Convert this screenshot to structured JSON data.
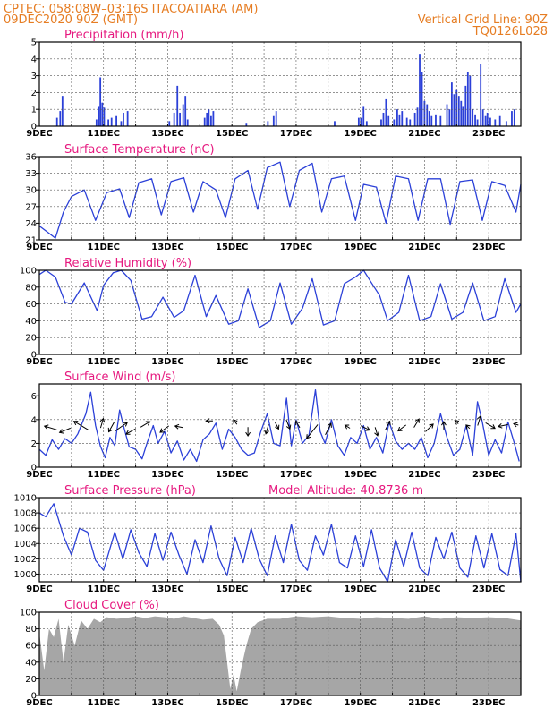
{
  "header": {
    "left_line1": "CPTEC:    058:08W–03:16S   ITACOATIARA (AM)",
    "left_line2": "09DEC2020 90Z (GMT)",
    "right_line1": "Vertical Grid Line: 90Z",
    "right_line2": "TQ0126L028"
  },
  "colors": {
    "header": "#e67d23",
    "title": "#e6197f",
    "line": "#2b40d8",
    "cloud": "#a6a6a6",
    "grid": "#555555"
  },
  "x_axis": {
    "ticks": [
      "9DEC",
      "11DEC",
      "13DEC",
      "15DEC",
      "17DEC",
      "19DEC",
      "21DEC",
      "23DEC"
    ],
    "range_days": [
      9,
      24
    ]
  },
  "chart_data": [
    {
      "type": "bar",
      "title": "Precipitation (mm/h)",
      "ylim": [
        0,
        5
      ],
      "yticks": [
        "0",
        "1",
        "2",
        "3",
        "4",
        "5"
      ],
      "bars": [
        [
          9.55,
          0.5
        ],
        [
          9.65,
          0.9
        ],
        [
          9.72,
          1.8
        ],
        [
          10.78,
          0.4
        ],
        [
          10.85,
          1.2
        ],
        [
          10.9,
          2.9
        ],
        [
          10.96,
          1.4
        ],
        [
          11.02,
          1.1
        ],
        [
          11.15,
          0.4
        ],
        [
          11.25,
          0.5
        ],
        [
          11.4,
          0.6
        ],
        [
          11.55,
          0.3
        ],
        [
          11.62,
          0.8
        ],
        [
          11.75,
          0.9
        ],
        [
          13.05,
          0.3
        ],
        [
          13.2,
          0.8
        ],
        [
          13.3,
          2.4
        ],
        [
          13.38,
          0.8
        ],
        [
          13.48,
          1.3
        ],
        [
          13.55,
          1.8
        ],
        [
          13.62,
          0.4
        ],
        [
          14.15,
          0.5
        ],
        [
          14.22,
          0.8
        ],
        [
          14.28,
          1.0
        ],
        [
          14.35,
          0.6
        ],
        [
          14.42,
          0.9
        ],
        [
          15.45,
          0.2
        ],
        [
          16.12,
          0.3
        ],
        [
          16.3,
          0.6
        ],
        [
          16.38,
          0.9
        ],
        [
          18.2,
          0.3
        ],
        [
          18.95,
          0.5
        ],
        [
          19.02,
          0.5
        ],
        [
          19.1,
          1.2
        ],
        [
          19.2,
          0.3
        ],
        [
          19.65,
          0.4
        ],
        [
          19.72,
          0.8
        ],
        [
          19.8,
          1.6
        ],
        [
          19.88,
          0.6
        ],
        [
          20.05,
          0.4
        ],
        [
          20.15,
          1.0
        ],
        [
          20.22,
          0.7
        ],
        [
          20.3,
          0.9
        ],
        [
          20.45,
          0.5
        ],
        [
          20.55,
          0.4
        ],
        [
          20.7,
          0.8
        ],
        [
          20.78,
          1.1
        ],
        [
          20.85,
          4.3
        ],
        [
          20.92,
          3.2
        ],
        [
          21.0,
          1.5
        ],
        [
          21.08,
          1.3
        ],
        [
          21.15,
          0.9
        ],
        [
          21.22,
          0.6
        ],
        [
          21.35,
          0.7
        ],
        [
          21.5,
          0.6
        ],
        [
          21.7,
          1.3
        ],
        [
          21.78,
          1.0
        ],
        [
          21.85,
          2.6
        ],
        [
          21.92,
          1.9
        ],
        [
          22.0,
          2.2
        ],
        [
          22.07,
          1.8
        ],
        [
          22.14,
          1.5
        ],
        [
          22.2,
          1.2
        ],
        [
          22.28,
          2.4
        ],
        [
          22.35,
          3.2
        ],
        [
          22.42,
          3.0
        ],
        [
          22.5,
          1.0
        ],
        [
          22.58,
          0.7
        ],
        [
          22.65,
          0.4
        ],
        [
          22.75,
          3.7
        ],
        [
          22.82,
          1.0
        ],
        [
          22.9,
          0.6
        ],
        [
          22.96,
          0.8
        ],
        [
          23.05,
          0.5
        ],
        [
          23.2,
          0.4
        ],
        [
          23.35,
          0.6
        ],
        [
          23.55,
          0.3
        ],
        [
          23.72,
          0.9
        ],
        [
          23.8,
          1.0
        ]
      ]
    },
    {
      "type": "line",
      "title": "Surface Temperature (nC)",
      "ylim": [
        21,
        36
      ],
      "yticks": [
        "21",
        "24",
        "27",
        "30",
        "33",
        "36"
      ],
      "x": [
        9.0,
        9.3,
        9.5,
        9.75,
        10.0,
        10.4,
        10.75,
        11.1,
        11.5,
        11.8,
        12.1,
        12.5,
        12.8,
        13.1,
        13.5,
        13.8,
        14.1,
        14.5,
        14.8,
        15.1,
        15.5,
        15.8,
        16.1,
        16.5,
        16.8,
        17.1,
        17.5,
        17.8,
        18.1,
        18.5,
        18.85,
        19.1,
        19.5,
        19.8,
        20.1,
        20.5,
        20.8,
        21.1,
        21.5,
        21.8,
        22.1,
        22.5,
        22.8,
        23.1,
        23.5,
        23.85,
        24.0
      ],
      "y": [
        23.5,
        22.2,
        21.3,
        26.0,
        28.8,
        30.0,
        24.5,
        29.5,
        30.2,
        25.0,
        31.3,
        32.0,
        25.5,
        31.5,
        32.2,
        26.0,
        31.5,
        30.0,
        25.0,
        32.0,
        33.5,
        26.5,
        34.0,
        35.0,
        27.0,
        33.5,
        34.8,
        26.0,
        32.0,
        32.5,
        24.5,
        31.0,
        30.5,
        24.0,
        32.5,
        32.0,
        24.5,
        32.0,
        32.0,
        23.8,
        31.5,
        31.8,
        24.5,
        31.5,
        30.8,
        26.0,
        31.0
      ]
    },
    {
      "type": "line",
      "title": "Relative Humidity (%)",
      "ylim": [
        0,
        100
      ],
      "yticks": [
        "0",
        "20",
        "40",
        "60",
        "80",
        "100"
      ],
      "x": [
        9.0,
        9.2,
        9.5,
        9.8,
        10.0,
        10.4,
        10.8,
        11.0,
        11.3,
        11.55,
        11.85,
        12.2,
        12.5,
        12.85,
        13.2,
        13.5,
        13.85,
        14.2,
        14.5,
        14.9,
        15.2,
        15.5,
        15.85,
        16.2,
        16.5,
        16.85,
        17.2,
        17.5,
        17.85,
        18.2,
        18.5,
        18.85,
        19.1,
        19.3,
        19.6,
        19.85,
        20.2,
        20.5,
        20.85,
        21.2,
        21.5,
        21.85,
        22.2,
        22.5,
        22.85,
        23.2,
        23.5,
        23.85,
        24.0
      ],
      "y": [
        95,
        100,
        92,
        62,
        60,
        85,
        52,
        82,
        97,
        100,
        88,
        42,
        45,
        68,
        44,
        52,
        94,
        45,
        70,
        36,
        40,
        78,
        32,
        40,
        85,
        36,
        55,
        90,
        35,
        40,
        84,
        92,
        100,
        88,
        70,
        40,
        50,
        94,
        40,
        45,
        84,
        42,
        50,
        85,
        40,
        45,
        90,
        50,
        60
      ]
    },
    {
      "type": "line",
      "title": "Surface Wind (m/s)",
      "ylim": [
        0,
        7
      ],
      "yticks": [
        "0",
        "2",
        "4",
        "6"
      ],
      "x": [
        9.0,
        9.2,
        9.4,
        9.6,
        9.8,
        10.0,
        10.2,
        10.45,
        10.6,
        10.75,
        10.9,
        11.05,
        11.2,
        11.35,
        11.5,
        11.65,
        11.8,
        12.0,
        12.2,
        12.35,
        12.55,
        12.7,
        12.9,
        13.1,
        13.3,
        13.5,
        13.7,
        13.9,
        14.1,
        14.3,
        14.5,
        14.7,
        14.9,
        15.1,
        15.3,
        15.5,
        15.7,
        15.9,
        16.1,
        16.3,
        16.5,
        16.7,
        16.85,
        17.0,
        17.2,
        17.4,
        17.6,
        17.75,
        17.9,
        18.1,
        18.3,
        18.5,
        18.7,
        18.9,
        19.1,
        19.3,
        19.5,
        19.7,
        19.9,
        20.1,
        20.3,
        20.5,
        20.7,
        20.9,
        21.1,
        21.3,
        21.5,
        21.7,
        21.9,
        22.1,
        22.3,
        22.5,
        22.65,
        22.8,
        23.0,
        23.2,
        23.4,
        23.6,
        23.8,
        23.95
      ],
      "y": [
        1.5,
        1.0,
        2.3,
        1.5,
        2.4,
        2.0,
        2.8,
        4.5,
        6.3,
        3.5,
        1.8,
        0.8,
        2.5,
        1.8,
        4.8,
        3.2,
        1.7,
        1.5,
        0.7,
        2.0,
        3.5,
        2.0,
        3.0,
        1.2,
        2.2,
        0.6,
        1.5,
        0.5,
        2.3,
        2.8,
        3.7,
        1.5,
        3.2,
        2.5,
        1.5,
        1.0,
        1.2,
        3.0,
        4.5,
        2.0,
        1.8,
        5.8,
        1.8,
        4.0,
        2.0,
        2.7,
        6.5,
        3.0,
        2.0,
        4.0,
        1.8,
        1.0,
        2.5,
        2.0,
        3.5,
        1.5,
        2.5,
        1.2,
        3.8,
        2.2,
        1.5,
        2.0,
        1.5,
        2.5,
        0.8,
        2.0,
        4.5,
        2.5,
        1.0,
        1.5,
        3.5,
        1.0,
        5.5,
        3.8,
        1.0,
        2.3,
        1.2,
        3.8,
        2.0,
        0.5
      ],
      "arrows": [
        [
          9.35,
          3.3,
          0.65,
          -1.0,
          0.3
        ],
        [
          9.8,
          3.1,
          0.6,
          -1.0,
          -0.4
        ],
        [
          10.3,
          3.5,
          0.85,
          -1.0,
          0.6
        ],
        [
          10.95,
          3.7,
          0.5,
          0.3,
          1.0
        ],
        [
          11.25,
          3.4,
          0.6,
          -0.5,
          -0.9
        ],
        [
          11.55,
          3.4,
          0.75,
          1.0,
          0.7
        ],
        [
          11.85,
          3.0,
          0.55,
          -0.9,
          -0.5
        ],
        [
          12.3,
          3.6,
          0.55,
          1.0,
          0.6
        ],
        [
          12.9,
          3.2,
          0.55,
          -0.8,
          -0.6
        ],
        [
          13.35,
          3.4,
          0.4,
          -1.0,
          0.2
        ],
        [
          14.3,
          3.9,
          0.35,
          -1.0,
          0.0
        ],
        [
          15.1,
          3.8,
          0.3,
          -0.6,
          0.8
        ],
        [
          15.5,
          3.0,
          0.45,
          0.0,
          -1.0
        ],
        [
          16.1,
          3.2,
          0.5,
          -0.3,
          -1.0
        ],
        [
          16.4,
          3.5,
          0.4,
          0.5,
          -1.0
        ],
        [
          16.75,
          3.6,
          0.5,
          0.4,
          -1.0
        ],
        [
          17.05,
          3.6,
          0.4,
          -0.6,
          1.0
        ],
        [
          17.5,
          3.0,
          0.9,
          -0.8,
          -1.0
        ],
        [
          18.0,
          3.2,
          0.65,
          0.5,
          1.0
        ],
        [
          18.6,
          3.4,
          0.3,
          -0.5,
          0.3
        ],
        [
          19.15,
          3.3,
          0.5,
          1.0,
          -0.5
        ],
        [
          19.5,
          3.0,
          0.45,
          0.3,
          -1.0
        ],
        [
          19.85,
          3.5,
          0.5,
          0.5,
          1.0
        ],
        [
          20.3,
          3.3,
          0.5,
          -0.8,
          -0.6
        ],
        [
          20.75,
          3.7,
          0.5,
          0.6,
          1.0
        ],
        [
          21.15,
          3.3,
          0.55,
          0.8,
          0.8
        ],
        [
          21.6,
          3.5,
          0.4,
          0.0,
          1.0
        ],
        [
          22.0,
          3.8,
          0.25,
          -0.6,
          0.6
        ],
        [
          22.35,
          3.4,
          0.25,
          -0.6,
          0.6
        ],
        [
          22.7,
          3.9,
          0.5,
          0.3,
          1.0
        ],
        [
          23.05,
          3.5,
          0.55,
          1.0,
          -0.6
        ],
        [
          23.45,
          3.5,
          0.5,
          -1.0,
          -0.2
        ],
        [
          23.85,
          3.6,
          0.25,
          -1.0,
          0.3
        ]
      ]
    },
    {
      "type": "line",
      "title": "Surface Pressure (hPa)",
      "annotation": "Model Altitude: 40.8736 m",
      "ylim": [
        999,
        1010
      ],
      "yticks": [
        "1000",
        "1002",
        "1004",
        "1006",
        "1008",
        "1010"
      ],
      "x": [
        9.0,
        9.2,
        9.45,
        9.75,
        10.0,
        10.25,
        10.5,
        10.75,
        11.0,
        11.35,
        11.6,
        11.85,
        12.1,
        12.35,
        12.6,
        12.85,
        13.1,
        13.35,
        13.6,
        13.85,
        14.1,
        14.35,
        14.6,
        14.85,
        15.1,
        15.35,
        15.6,
        15.85,
        16.1,
        16.35,
        16.6,
        16.85,
        17.1,
        17.35,
        17.6,
        17.85,
        18.1,
        18.35,
        18.6,
        18.85,
        19.1,
        19.35,
        19.6,
        19.85,
        20.1,
        20.35,
        20.6,
        20.85,
        21.1,
        21.35,
        21.6,
        21.85,
        22.1,
        22.35,
        22.6,
        22.85,
        23.1,
        23.35,
        23.6,
        23.85,
        24.0
      ],
      "y": [
        1008.0,
        1007.5,
        1009.2,
        1005.0,
        1002.5,
        1006.0,
        1005.5,
        1001.8,
        1000.5,
        1005.5,
        1002.0,
        1005.8,
        1002.8,
        1001.0,
        1005.3,
        1001.8,
        1005.5,
        1002.5,
        1000.0,
        1004.5,
        1001.5,
        1006.3,
        1002.0,
        999.8,
        1004.8,
        1001.5,
        1006.0,
        1002.0,
        999.8,
        1005.0,
        1001.5,
        1006.5,
        1001.8,
        1000.5,
        1005.0,
        1002.5,
        1006.5,
        1001.5,
        1000.8,
        1005.0,
        1001.0,
        1005.8,
        1000.8,
        999.0,
        1004.5,
        1001.0,
        1005.5,
        1000.8,
        999.8,
        1004.8,
        1002.0,
        1005.5,
        1000.8,
        999.6,
        1005.0,
        1000.8,
        1005.3,
        1000.6,
        999.8,
        1005.3,
        999.0
      ]
    },
    {
      "type": "area",
      "title": "Cloud Cover (%)",
      "ylim": [
        0,
        100
      ],
      "yticks": [
        "0",
        "20",
        "40",
        "60",
        "80",
        "100"
      ],
      "x": [
        9.0,
        9.15,
        9.3,
        9.45,
        9.6,
        9.75,
        9.9,
        10.1,
        10.3,
        10.5,
        10.7,
        10.9,
        11.1,
        11.4,
        11.7,
        12.0,
        12.3,
        12.6,
        12.9,
        13.2,
        13.5,
        13.8,
        14.1,
        14.4,
        14.6,
        14.75,
        14.85,
        14.95,
        15.05,
        15.15,
        15.3,
        15.45,
        15.6,
        15.8,
        16.1,
        16.5,
        17.0,
        17.5,
        18.0,
        18.5,
        19.0,
        19.5,
        20.0,
        20.5,
        21.0,
        21.5,
        22.0,
        22.5,
        23.0,
        23.5,
        24.0
      ],
      "y": [
        75,
        30,
        80,
        70,
        92,
        40,
        85,
        60,
        90,
        80,
        92,
        88,
        94,
        92,
        93,
        95,
        93,
        95,
        94,
        92,
        95,
        93,
        91,
        92,
        85,
        72,
        40,
        8,
        25,
        5,
        35,
        60,
        80,
        88,
        92,
        92,
        95,
        94,
        95,
        93,
        92,
        94,
        93,
        92,
        95,
        92,
        94,
        93,
        94,
        93,
        90
      ]
    }
  ]
}
